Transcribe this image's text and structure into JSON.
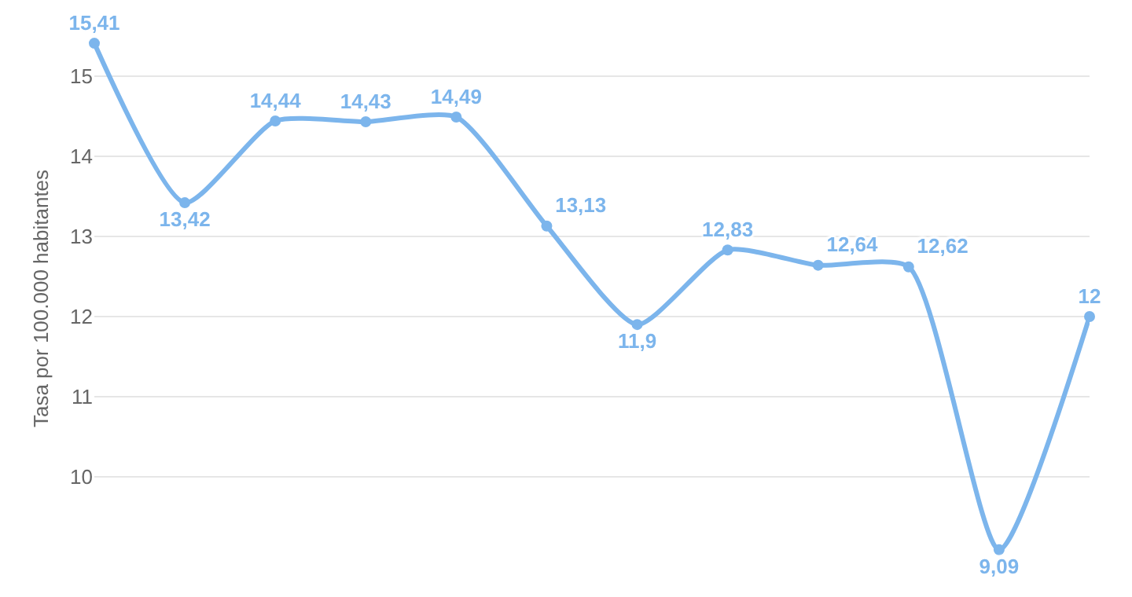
{
  "chart_data": {
    "type": "line",
    "ylabel": "Tasa por 100.000 habitantes",
    "categories": [
      null,
      null,
      null,
      null,
      null,
      null,
      null,
      null,
      null,
      null,
      null,
      null
    ],
    "series": [
      {
        "color": "#7cb5ec",
        "values": [
          15.41,
          13.42,
          14.44,
          14.43,
          14.49,
          13.13,
          11.9,
          12.83,
          12.64,
          12.62,
          9.09,
          12
        ],
        "value_labels": [
          "15,41",
          "13,42",
          "14,44",
          "14,43",
          "14,49",
          "13,13",
          "11,9",
          "12,83",
          "12,64",
          "12,62",
          "9,09",
          "12"
        ]
      }
    ],
    "ylim": [
      8.5,
      15.95
    ],
    "yticks": [
      10,
      11,
      12,
      13,
      14,
      15
    ],
    "grid": "y",
    "marker": "circle",
    "line_style": "solid"
  }
}
